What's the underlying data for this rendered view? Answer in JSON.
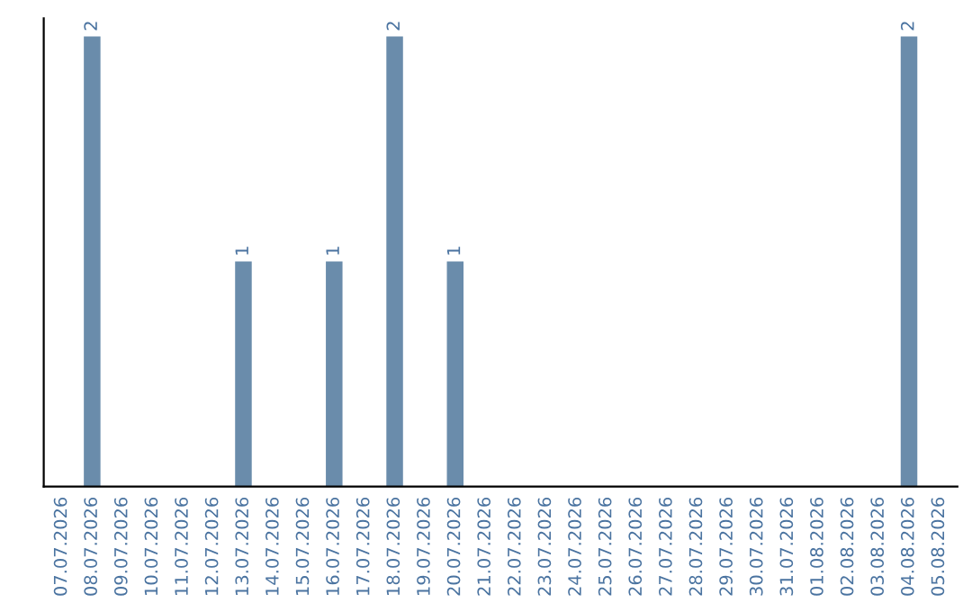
{
  "chart_data": {
    "type": "bar",
    "categories": [
      "07.07.2026",
      "08.07.2026",
      "09.07.2026",
      "10.07.2026",
      "11.07.2026",
      "12.07.2026",
      "13.07.2026",
      "14.07.2026",
      "15.07.2026",
      "16.07.2026",
      "17.07.2026",
      "18.07.2026",
      "19.07.2026",
      "20.07.2026",
      "21.07.2026",
      "22.07.2026",
      "23.07.2026",
      "24.07.2026",
      "25.07.2026",
      "26.07.2026",
      "27.07.2026",
      "28.07.2026",
      "29.07.2026",
      "30.07.2026",
      "31.07.2026",
      "01.08.2026",
      "02.08.2026",
      "03.08.2026",
      "04.08.2026",
      "05.08.2026"
    ],
    "values": [
      0,
      2,
      0,
      0,
      0,
      0,
      1,
      0,
      0,
      1,
      0,
      2,
      0,
      1,
      0,
      0,
      0,
      0,
      0,
      0,
      0,
      0,
      0,
      0,
      0,
      0,
      0,
      0,
      2,
      0
    ],
    "value_labels": [
      null,
      "2",
      null,
      null,
      null,
      null,
      "1",
      null,
      null,
      "1",
      null,
      "2",
      null,
      "1",
      null,
      null,
      null,
      null,
      null,
      null,
      null,
      null,
      null,
      null,
      null,
      null,
      null,
      null,
      "2",
      null
    ],
    "color": "#6a8cab",
    "tick_labels": "x",
    "grid": false,
    "legend": false
  }
}
